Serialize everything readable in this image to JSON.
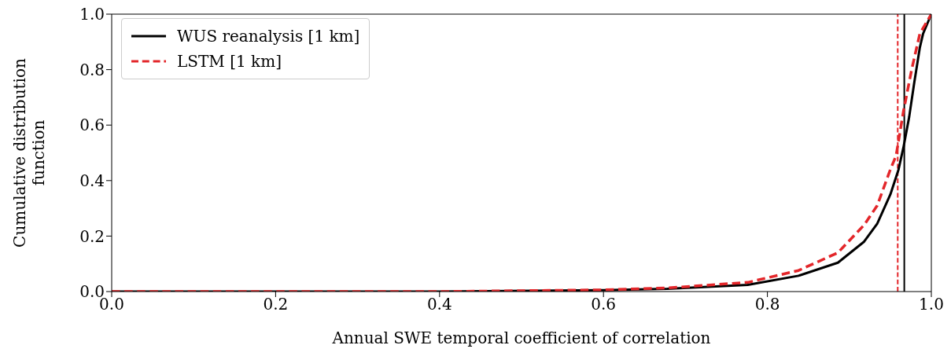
{
  "chart_data": {
    "type": "line",
    "xlabel": "Annual SWE temporal coefficient of correlation",
    "ylabel": "Cumulative distribution\nfunction",
    "xlim": [
      0,
      1
    ],
    "ylim": [
      0,
      1
    ],
    "xticks": [
      {
        "value": 0,
        "label": "0.0"
      },
      0.2,
      0.4,
      0.6,
      0.8,
      {
        "value": 1,
        "label": "1.0"
      }
    ],
    "yticks": [
      {
        "value": 0,
        "label": "0.0"
      },
      0.2,
      0.4,
      0.6,
      0.8,
      {
        "value": 1,
        "label": "1.0"
      }
    ],
    "grid": false,
    "legend": "top left",
    "marker": "none",
    "series": [
      {
        "name": "WUS reanalysis [1 km]",
        "color": "#000000",
        "line_style": "solid",
        "x": [
          0,
          0.2,
          0.4,
          0.6,
          0.678,
          0.776,
          0.838,
          0.886,
          0.918,
          0.934,
          0.95,
          0.96,
          0.966,
          0.973,
          0.979,
          0.986,
          0.99,
          1
        ],
        "values": [
          0,
          0,
          0,
          0.005,
          0.01,
          0.024,
          0.057,
          0.104,
          0.18,
          0.245,
          0.35,
          0.44,
          0.52,
          0.63,
          0.75,
          0.88,
          0.93,
          1
        ]
      },
      {
        "name": "LSTM [1 km]",
        "color": "#e3262a",
        "line_style": "dashed",
        "x": [
          0,
          0.2,
          0.4,
          0.6,
          0.678,
          0.776,
          0.838,
          0.886,
          0.918,
          0.934,
          0.95,
          0.957,
          0.966,
          0.976,
          0.986,
          1
        ],
        "values": [
          0,
          0,
          0,
          0.006,
          0.013,
          0.033,
          0.076,
          0.14,
          0.24,
          0.31,
          0.44,
          0.49,
          0.65,
          0.8,
          0.93,
          1
        ]
      }
    ],
    "ref_lines": [
      {
        "axis": "x",
        "value": 0.967,
        "color": "#000000",
        "line_style": "solid"
      },
      {
        "axis": "x",
        "value": 0.959,
        "color": "#e3262a",
        "line_style": "dashed"
      }
    ]
  }
}
